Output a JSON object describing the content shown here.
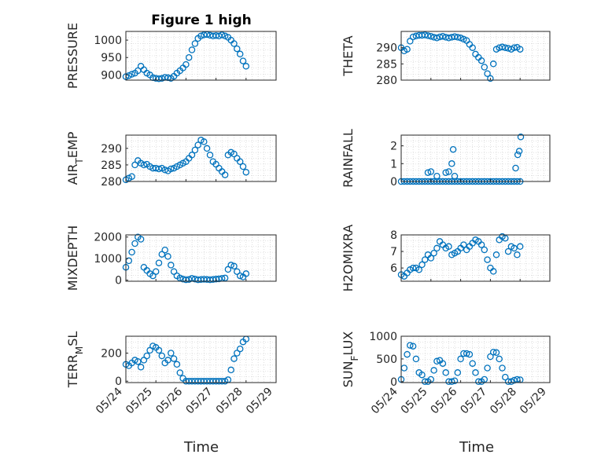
{
  "title": "Figure 1 high",
  "xlabel": "Time",
  "x_ticks": [
    "05/24",
    "05/25",
    "05/26",
    "05/27",
    "05/28",
    "05/29"
  ],
  "marker_color": "#0072BD",
  "chart_data": [
    {
      "type": "scatter",
      "ylabel": "PRESSURE",
      "xlim": [
        0,
        5
      ],
      "ylim": [
        885,
        1025
      ],
      "yticks": [
        900,
        950,
        1000
      ],
      "x": [
        0,
        0.1,
        0.2,
        0.3,
        0.4,
        0.5,
        0.6,
        0.7,
        0.8,
        0.9,
        1.0,
        1.1,
        1.2,
        1.3,
        1.4,
        1.5,
        1.6,
        1.7,
        1.8,
        1.9,
        2.0,
        2.1,
        2.2,
        2.3,
        2.4,
        2.5,
        2.6,
        2.7,
        2.8,
        2.9,
        3.0,
        3.1,
        3.2,
        3.3,
        3.4,
        3.5,
        3.6,
        3.7,
        3.8,
        3.9,
        4.0
      ],
      "y": [
        895,
        898,
        902,
        905,
        912,
        925,
        915,
        905,
        900,
        892,
        890,
        889,
        890,
        893,
        892,
        890,
        896,
        905,
        912,
        920,
        930,
        950,
        972,
        990,
        1005,
        1012,
        1015,
        1016,
        1014,
        1012,
        1013,
        1012,
        1015,
        1012,
        1008,
        1000,
        990,
        975,
        960,
        940,
        925
      ]
    },
    {
      "type": "scatter",
      "ylabel": "THETA",
      "xlim": [
        0,
        5
      ],
      "ylim": [
        280,
        295
      ],
      "yticks": [
        280,
        285,
        290
      ],
      "x": [
        0,
        0.1,
        0.2,
        0.3,
        0.4,
        0.5,
        0.6,
        0.7,
        0.8,
        0.9,
        1.0,
        1.1,
        1.2,
        1.3,
        1.4,
        1.5,
        1.6,
        1.7,
        1.8,
        1.9,
        2.0,
        2.1,
        2.2,
        2.3,
        2.4,
        2.5,
        2.6,
        2.7,
        2.8,
        2.9,
        3.0,
        3.1,
        3.2,
        3.3,
        3.4,
        3.5,
        3.6,
        3.7,
        3.8,
        3.9,
        4.0
      ],
      "y": [
        290,
        289,
        289.5,
        292,
        293.3,
        293.6,
        293.8,
        293.8,
        293.9,
        293.7,
        293.5,
        293.2,
        293,
        293.3,
        293.5,
        293.2,
        293,
        293.2,
        293.4,
        293.2,
        293,
        292.6,
        292.2,
        291,
        290,
        288,
        287,
        286,
        284,
        282,
        280.5,
        285,
        289.5,
        290,
        290.2,
        290,
        289.8,
        289.5,
        290,
        290.1,
        289.5
      ]
    },
    {
      "type": "scatter",
      "ylabel": "AIR_TEMP",
      "xlim": [
        0,
        5
      ],
      "ylim": [
        280,
        294
      ],
      "yticks": [
        280,
        285,
        290
      ],
      "x": [
        0,
        0.1,
        0.2,
        0.3,
        0.4,
        0.5,
        0.6,
        0.7,
        0.8,
        0.9,
        1.0,
        1.1,
        1.2,
        1.3,
        1.4,
        1.5,
        1.6,
        1.7,
        1.8,
        1.9,
        2.0,
        2.1,
        2.2,
        2.3,
        2.4,
        2.5,
        2.6,
        2.7,
        2.8,
        2.9,
        3.0,
        3.1,
        3.2,
        3.3,
        3.4,
        3.5,
        3.6,
        3.7,
        3.8,
        3.9,
        4.0
      ],
      "y": [
        280.5,
        281,
        281.5,
        285,
        286.3,
        285.5,
        285,
        285.2,
        284.5,
        284,
        284,
        283.8,
        284,
        283.5,
        283.2,
        283.8,
        284,
        284.5,
        285,
        285.5,
        286,
        287,
        288,
        289.5,
        291,
        292.5,
        292,
        290,
        288,
        286,
        285.2,
        284,
        283,
        282,
        288,
        288.8,
        288.3,
        287,
        286,
        284.5,
        282.8
      ]
    },
    {
      "type": "scatter",
      "ylabel": "RAINFALL",
      "xlim": [
        0,
        5
      ],
      "ylim": [
        0,
        2.6
      ],
      "yticks": [
        0,
        1,
        2
      ],
      "x": [
        0,
        0.1,
        0.2,
        0.3,
        0.4,
        0.5,
        0.6,
        0.7,
        0.8,
        0.9,
        1.0,
        1.1,
        1.2,
        1.3,
        1.4,
        1.5,
        1.6,
        1.7,
        1.8,
        1.9,
        2.0,
        2.1,
        2.2,
        2.3,
        2.4,
        2.5,
        2.6,
        2.7,
        2.8,
        2.9,
        3.0,
        3.1,
        3.2,
        3.3,
        3.4,
        3.5,
        3.6,
        3.7,
        3.8,
        3.9,
        4.0,
        0.9,
        1.0,
        1.2,
        1.5,
        1.6,
        1.7,
        1.75,
        1.8,
        3.85,
        3.92,
        3.97,
        4.02
      ],
      "y": [
        0,
        0,
        0,
        0,
        0,
        0,
        0,
        0,
        0,
        0,
        0,
        0,
        0,
        0,
        0,
        0,
        0,
        0,
        0,
        0,
        0,
        0,
        0,
        0,
        0,
        0,
        0,
        0,
        0,
        0,
        0,
        0,
        0,
        0,
        0,
        0,
        0,
        0,
        0,
        0,
        0,
        0.5,
        0.55,
        0.3,
        0.5,
        0.55,
        1.0,
        1.8,
        0.3,
        0.75,
        1.5,
        1.7,
        2.5
      ]
    },
    {
      "type": "scatter",
      "ylabel": "MIXDEPTH",
      "xlim": [
        0,
        5
      ],
      "ylim": [
        -50,
        2100
      ],
      "yticks": [
        0,
        1000,
        2000
      ],
      "x": [
        0,
        0.1,
        0.2,
        0.3,
        0.4,
        0.5,
        0.6,
        0.7,
        0.8,
        0.9,
        1.0,
        1.1,
        1.2,
        1.3,
        1.4,
        1.5,
        1.6,
        1.7,
        1.8,
        1.9,
        2.0,
        2.1,
        2.2,
        2.3,
        2.4,
        2.5,
        2.6,
        2.7,
        2.8,
        2.9,
        3.0,
        3.1,
        3.2,
        3.3,
        3.4,
        3.5,
        3.6,
        3.7,
        3.8,
        3.9,
        4.0
      ],
      "y": [
        600,
        900,
        1300,
        1700,
        2000,
        1900,
        600,
        450,
        300,
        200,
        400,
        800,
        1200,
        1400,
        1100,
        700,
        400,
        200,
        100,
        50,
        20,
        30,
        80,
        50,
        20,
        30,
        40,
        30,
        20,
        30,
        50,
        60,
        80,
        100,
        500,
        700,
        650,
        400,
        200,
        150,
        300
      ]
    },
    {
      "type": "scatter",
      "ylabel": "H2OMIXRA",
      "xlim": [
        0,
        5
      ],
      "ylim": [
        5.2,
        8
      ],
      "yticks": [
        6,
        7,
        8
      ],
      "x": [
        0,
        0.1,
        0.2,
        0.3,
        0.4,
        0.5,
        0.6,
        0.7,
        0.8,
        0.9,
        1.0,
        1.1,
        1.2,
        1.3,
        1.4,
        1.5,
        1.6,
        1.7,
        1.8,
        1.9,
        2.0,
        2.1,
        2.2,
        2.3,
        2.4,
        2.5,
        2.6,
        2.7,
        2.8,
        2.9,
        3.0,
        3.1,
        3.2,
        3.3,
        3.4,
        3.5,
        3.6,
        3.7,
        3.8,
        3.9,
        4.0
      ],
      "y": [
        5.6,
        5.5,
        5.7,
        5.9,
        6.0,
        6.0,
        5.9,
        6.2,
        6.5,
        6.8,
        6.6,
        6.9,
        7.2,
        7.6,
        7.4,
        7.2,
        7.3,
        6.8,
        6.9,
        7.0,
        7.2,
        7.4,
        7.1,
        7.3,
        7.5,
        7.7,
        7.6,
        7.4,
        7.1,
        6.5,
        6.0,
        5.8,
        6.8,
        7.7,
        7.9,
        7.8,
        7.0,
        7.3,
        7.2,
        6.8,
        7.3
      ]
    },
    {
      "type": "scatter",
      "ylabel": "TERR_MSL",
      "xlim": [
        0,
        5
      ],
      "ylim": [
        -10,
        320
      ],
      "yticks": [
        0,
        200
      ],
      "x": [
        0,
        0.1,
        0.2,
        0.3,
        0.4,
        0.5,
        0.6,
        0.7,
        0.8,
        0.9,
        1.0,
        1.1,
        1.2,
        1.3,
        1.4,
        1.5,
        1.6,
        1.7,
        1.8,
        1.9,
        2.0,
        2.1,
        2.2,
        2.3,
        2.4,
        2.5,
        2.6,
        2.7,
        2.8,
        2.9,
        3.0,
        3.1,
        3.2,
        3.3,
        3.4,
        3.5,
        3.6,
        3.7,
        3.8,
        3.9,
        4.0
      ],
      "y": [
        120,
        110,
        130,
        150,
        140,
        100,
        150,
        180,
        220,
        250,
        240,
        220,
        180,
        130,
        150,
        200,
        160,
        120,
        60,
        20,
        0,
        0,
        0,
        0,
        0,
        0,
        0,
        0,
        0,
        0,
        0,
        0,
        0,
        0,
        10,
        80,
        160,
        200,
        230,
        280,
        300
      ]
    },
    {
      "type": "scatter",
      "ylabel": "SUN_FLUX",
      "xlim": [
        0,
        5
      ],
      "ylim": [
        -20,
        1000
      ],
      "yticks": [
        0,
        500,
        1000
      ],
      "x": [
        0,
        0.1,
        0.2,
        0.3,
        0.4,
        0.5,
        0.6,
        0.7,
        0.8,
        0.9,
        1.0,
        1.1,
        1.2,
        1.3,
        1.4,
        1.5,
        1.6,
        1.7,
        1.8,
        1.9,
        2.0,
        2.1,
        2.2,
        2.3,
        2.4,
        2.5,
        2.6,
        2.7,
        2.8,
        2.9,
        3.0,
        3.1,
        3.2,
        3.3,
        3.4,
        3.5,
        3.6,
        3.7,
        3.8,
        3.9,
        4.0
      ],
      "y": [
        50,
        300,
        600,
        800,
        780,
        500,
        200,
        150,
        0,
        0,
        50,
        250,
        450,
        470,
        400,
        200,
        0,
        0,
        20,
        200,
        500,
        620,
        620,
        600,
        400,
        200,
        0,
        0,
        50,
        300,
        550,
        650,
        640,
        500,
        300,
        100,
        0,
        0,
        30,
        50,
        40
      ]
    }
  ]
}
